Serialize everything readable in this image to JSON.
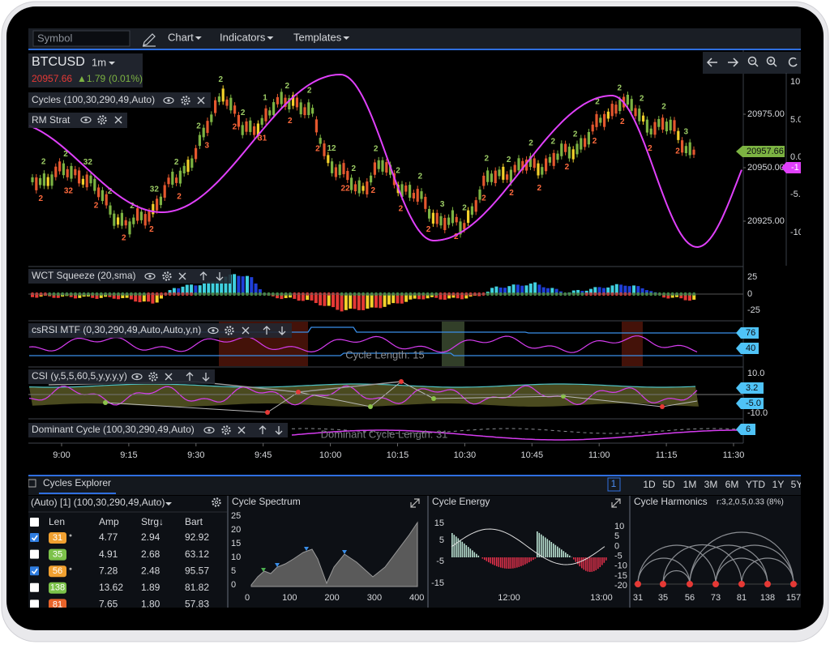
{
  "toolbar": {
    "symbol_placeholder": "Symbol",
    "menus": [
      "Chart",
      "Indicators",
      "Templates"
    ]
  },
  "main_chart": {
    "symbol": "BTCUSD",
    "interval": "1m",
    "last": "20957.66",
    "change": "▲1.79",
    "change_pct": "(0.01%)",
    "indicators": [
      "Cycles (100,30,290,49,Auto)",
      "RM Strat"
    ],
    "price_axis": [
      "20975.00",
      "20950.00",
      "20925.00"
    ],
    "cycle_axis": [
      "10",
      "5.0",
      "0.0",
      "-5.",
      "-10"
    ],
    "price_tag": "20957.66",
    "cycle_tag": "-1",
    "bar_labels_top": [
      "2",
      "2",
      "32",
      "2",
      "2",
      "32",
      "2",
      "2",
      "2",
      "2",
      "1",
      "2",
      "2",
      "12",
      "2",
      "2",
      "2",
      "2",
      "3",
      "2",
      "2",
      "2",
      "2",
      "2",
      "2",
      "2",
      "2",
      "2",
      "2",
      "3"
    ],
    "bar_labels_bottom": [
      "2",
      "32",
      "2",
      "2",
      "2",
      "2",
      "3",
      "2",
      "31",
      "2",
      "2",
      "22",
      "2",
      "2",
      "2",
      "2",
      "2",
      "2",
      "2",
      "2",
      "2",
      "2",
      "2",
      "2"
    ]
  },
  "panels": [
    {
      "title": "WCT Squeeze (20,sma)",
      "axis": [
        "25",
        "0",
        "-25"
      ]
    },
    {
      "title": "csRSI MTF (0,30,290,49,Auto,Auto,y,n)",
      "annotation": "Cycle Length: 15",
      "tags": [
        "76",
        "40"
      ]
    },
    {
      "title": "CSI (y,5,5,60,5,y,y,y,y)",
      "axis": [
        "10.0",
        "-10.0"
      ],
      "tags": [
        "3.2",
        "-5.0"
      ]
    },
    {
      "title": "Dominant Cycle (100,30,290,49,Auto)",
      "annotation": "Dominant Cycle Length: 31",
      "tags": [
        "6"
      ]
    }
  ],
  "time_axis": [
    "9:00",
    "9:15",
    "9:30",
    "9:45",
    "10:00",
    "10:15",
    "10:30",
    "10:45",
    "11:00",
    "11:15",
    "11:30"
  ],
  "explorer": {
    "tab": "Cycles Explorer",
    "page": "1",
    "ranges": [
      "1D",
      "5D",
      "1M",
      "3M",
      "6M",
      "YTD",
      "1Y",
      "5Y"
    ],
    "table": {
      "setting": "(Auto) [1] (100,30,290,49,Auto)",
      "columns": [
        "Len",
        "Amp",
        "Strg↓",
        "Bart"
      ],
      "rows": [
        [
          "31",
          "4.77",
          "2.94",
          "92.92"
        ],
        [
          "35",
          "4.91",
          "2.68",
          "63.12"
        ],
        [
          "56",
          "7.28",
          "2.48",
          "95.57"
        ],
        [
          "138",
          "13.62",
          "1.89",
          "81.82"
        ],
        [
          "81",
          "7.65",
          "1.80",
          "57.83"
        ]
      ],
      "checked": [
        true,
        false,
        true,
        false,
        false
      ],
      "badge_colors": [
        "#f0a030",
        "#7cc24a",
        "#f0a030",
        "#7cc24a",
        "#e8632a"
      ]
    },
    "spectrum": {
      "title": "Cycle Spectrum",
      "yticks": [
        "25",
        "20",
        "15",
        "10",
        "5",
        "0"
      ],
      "xticks": [
        "0",
        "100",
        "200",
        "300",
        "400"
      ]
    },
    "energy": {
      "title": "Cycle Energy",
      "left_ticks": [
        "15",
        "5",
        "-5",
        "-15"
      ],
      "right_ticks": [
        "10",
        "5",
        "0",
        "-5",
        "-10",
        "-15",
        "-20"
      ],
      "xticks": [
        "12:00",
        "13:00"
      ]
    },
    "harmonics": {
      "title": "Cycle Harmonics",
      "ratio": "r:3,2,0.5,0.33 (8%)",
      "xticks": [
        "31",
        "35",
        "56",
        "73",
        "81",
        "138",
        "157"
      ]
    }
  }
}
